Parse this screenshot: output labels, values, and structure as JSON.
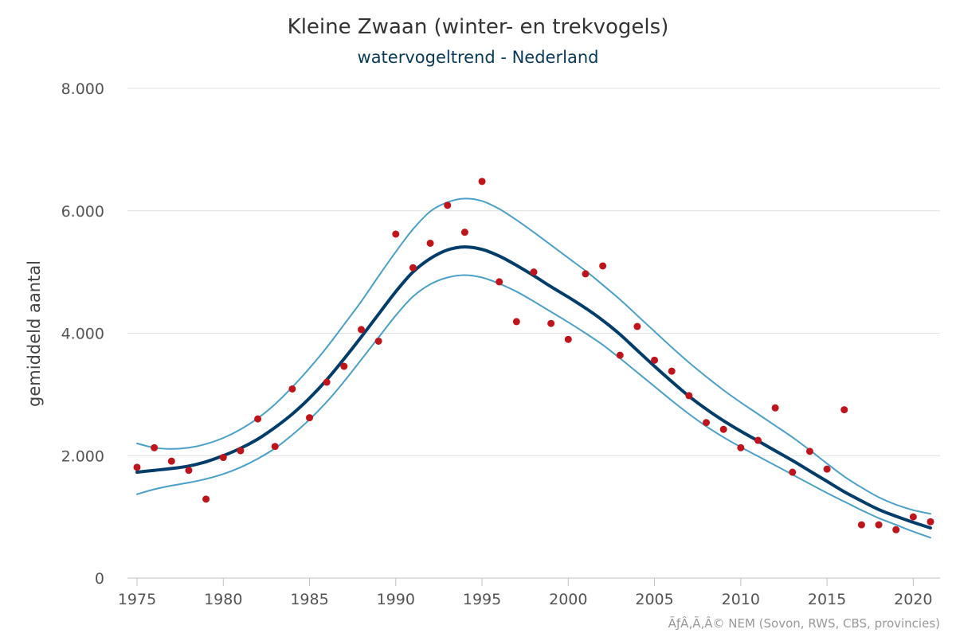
{
  "chart_data": {
    "type": "line",
    "title": "Kleine Zwaan (winter- en trekvogels)",
    "subtitle": "watervogeltrend - Nederland",
    "ylabel": "gemiddeld aantal",
    "xlabel": "",
    "credit": "ÃƒÂ‚Ã‚Â© NEM (Sovon, RWS, CBS, provincies)",
    "xlim": [
      1975,
      2021
    ],
    "ylim": [
      0,
      8000
    ],
    "x_ticks": [
      1975,
      1980,
      1985,
      1990,
      1995,
      2000,
      2005,
      2010,
      2015,
      2020
    ],
    "y_ticks": [
      0,
      2000,
      4000,
      6000,
      8000
    ],
    "y_tick_labels": [
      "0",
      "2.000",
      "4.000",
      "6.000",
      "8.000"
    ],
    "grid": true,
    "colors": {
      "trend": "#003d6b",
      "band": "#4aa0c8",
      "points": "#c0141b"
    },
    "x": [
      1975,
      1976,
      1977,
      1978,
      1979,
      1980,
      1981,
      1982,
      1983,
      1984,
      1985,
      1986,
      1987,
      1988,
      1989,
      1990,
      1991,
      1992,
      1993,
      1994,
      1995,
      1996,
      1997,
      1998,
      1999,
      2000,
      2001,
      2002,
      2003,
      2004,
      2005,
      2006,
      2007,
      2008,
      2009,
      2010,
      2011,
      2012,
      2013,
      2014,
      2015,
      2016,
      2017,
      2018,
      2019,
      2020,
      2021
    ],
    "series": [
      {
        "role": "trend",
        "style": "line",
        "values": [
          1730,
          1760,
          1790,
          1830,
          1900,
          2000,
          2120,
          2270,
          2460,
          2680,
          2940,
          3240,
          3580,
          3940,
          4310,
          4680,
          5000,
          5220,
          5360,
          5410,
          5370,
          5260,
          5110,
          4940,
          4760,
          4590,
          4410,
          4210,
          3980,
          3720,
          3460,
          3210,
          2970,
          2760,
          2570,
          2400,
          2240,
          2080,
          1920,
          1750,
          1580,
          1410,
          1260,
          1120,
          1010,
          910,
          820
        ]
      },
      {
        "role": "upper-band",
        "style": "line",
        "values": [
          2200,
          2130,
          2110,
          2130,
          2190,
          2290,
          2430,
          2610,
          2840,
          3120,
          3430,
          3770,
          4140,
          4520,
          4930,
          5330,
          5700,
          5990,
          6140,
          6200,
          6160,
          6030,
          5850,
          5650,
          5440,
          5230,
          5020,
          4790,
          4550,
          4290,
          4030,
          3770,
          3520,
          3290,
          3070,
          2870,
          2680,
          2490,
          2300,
          2090,
          1870,
          1660,
          1480,
          1320,
          1200,
          1110,
          1050
        ]
      },
      {
        "role": "lower-band",
        "style": "line",
        "values": [
          1370,
          1450,
          1510,
          1560,
          1620,
          1700,
          1810,
          1950,
          2120,
          2340,
          2590,
          2880,
          3210,
          3570,
          3930,
          4290,
          4600,
          4800,
          4910,
          4950,
          4910,
          4810,
          4680,
          4520,
          4350,
          4180,
          4000,
          3810,
          3590,
          3360,
          3130,
          2900,
          2680,
          2480,
          2300,
          2140,
          1990,
          1840,
          1690,
          1540,
          1390,
          1250,
          1110,
          980,
          870,
          760,
          660
        ]
      },
      {
        "role": "index",
        "style": "points",
        "values": [
          1810,
          2130,
          1910,
          1760,
          1290,
          1970,
          2080,
          2600,
          2150,
          3090,
          2620,
          3200,
          3460,
          4060,
          3870,
          5620,
          5070,
          5470,
          6090,
          5650,
          6480,
          4840,
          4190,
          5000,
          4160,
          3900,
          4970,
          5100,
          3640,
          4110,
          3560,
          3380,
          2980,
          2540,
          2430,
          2130,
          2250,
          2780,
          1730,
          2070,
          1780,
          2750,
          870,
          870,
          790,
          1000,
          920
        ]
      }
    ]
  }
}
